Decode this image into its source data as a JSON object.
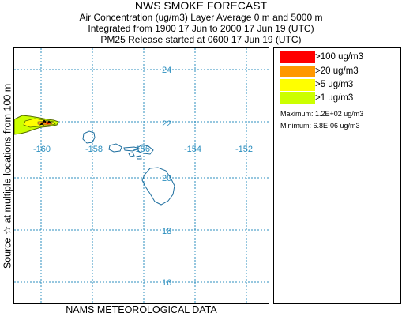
{
  "header": {
    "title": "NWS SMOKE FORECAST",
    "line1": "Air Concentration (ug/m3) Layer Average     0 m and  5000 m",
    "line2": "Integrated from 1900 17 Jun to 2000 17 Jun 19 (UTC)",
    "line3": "PM25 Release started at 0600 17 Jun 19 (UTC)"
  },
  "side_label": "Source ☆   at multiple locations      from   100 m",
  "footer": "NAMS METEOROLOGICAL DATA",
  "map": {
    "lat_labels": [
      "24",
      "22",
      "20",
      "18",
      "16"
    ],
    "lon_labels": [
      "-160",
      "-158",
      "-156",
      "-154",
      "-152"
    ],
    "grid_color": "#2c8fbf",
    "coast_color": "#1f6f9f"
  },
  "legend": {
    "items": [
      {
        "label": ">100 ug/m3",
        "color": "#ff0000"
      },
      {
        "label": ">20 ug/m3",
        "color": "#ff9900"
      },
      {
        "label": ">5 ug/m3",
        "color": "#ffff00"
      },
      {
        "label": ">1 ug/m3",
        "color": "#ccff00"
      }
    ],
    "maximum": "Maximum: 1.2E+02 ug/m3",
    "minimum": "Minimum: 6.8E-06 ug/m3"
  }
}
